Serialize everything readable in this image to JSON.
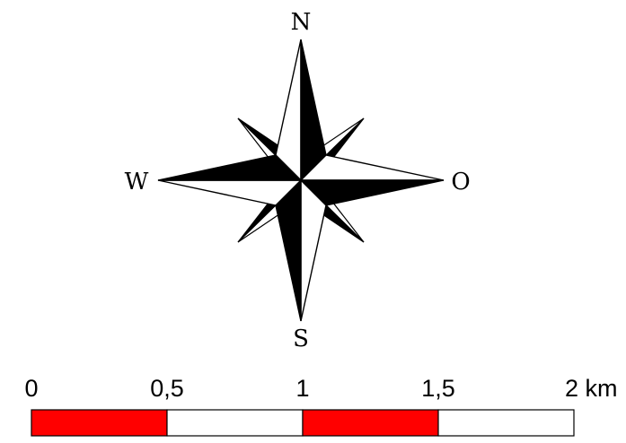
{
  "compass": {
    "north": "N",
    "south": "S",
    "west": "W",
    "east": "O",
    "primary_color": "#000000",
    "secondary_color": "#ffffff"
  },
  "scale_bar": {
    "labels": [
      "0",
      "0,5",
      "1",
      "1,5",
      "2 km"
    ],
    "segments": [
      {
        "color": "#ff0000"
      },
      {
        "color": "#ffffff"
      },
      {
        "color": "#ff0000"
      },
      {
        "color": "#ffffff"
      }
    ],
    "outline_color": "#000000"
  }
}
